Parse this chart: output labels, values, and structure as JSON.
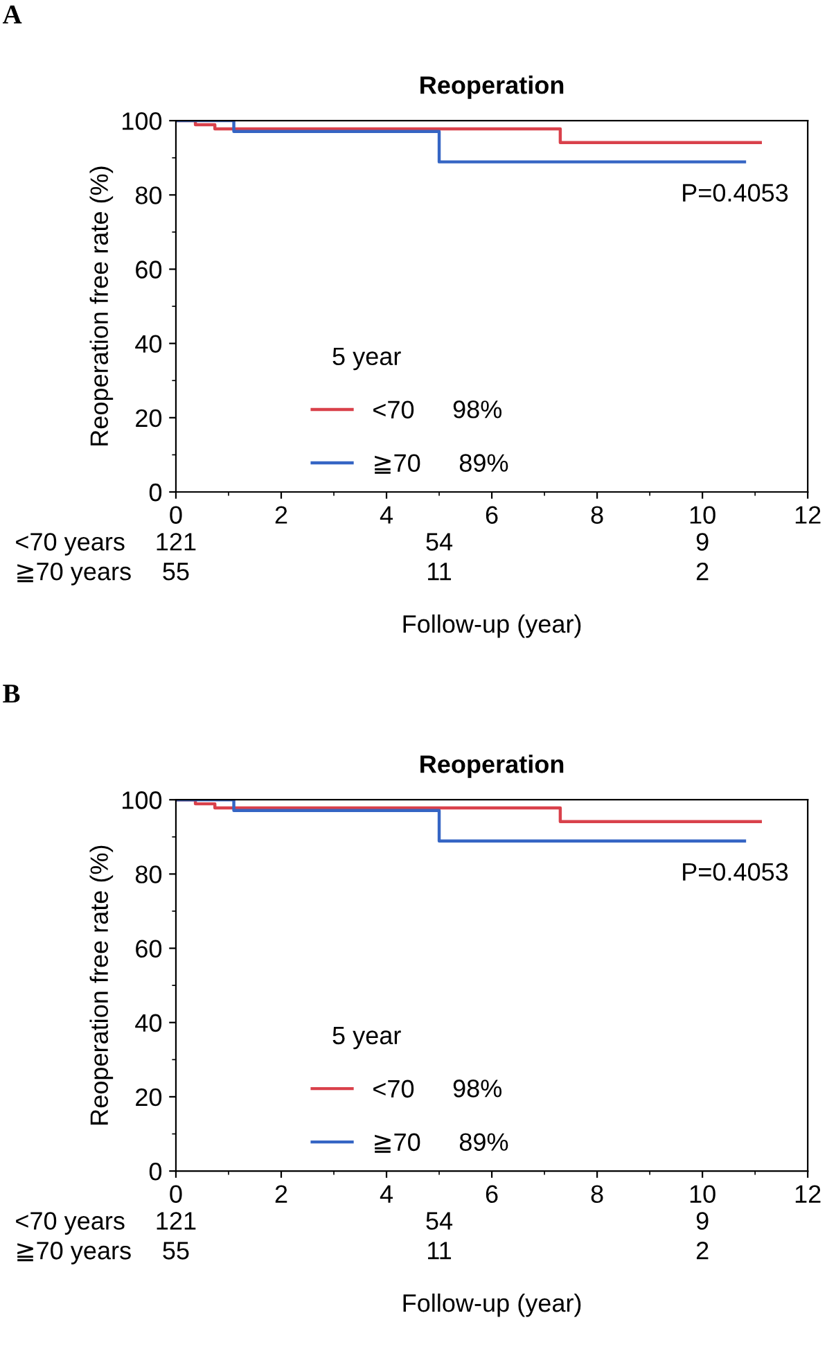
{
  "chart_data": [
    {
      "type": "step",
      "title": "Reoperation",
      "xlabel": "Follow-up (year)",
      "ylabel": "Reoperation free rate (%)",
      "legend_title": "5 year",
      "series": [
        {
          "name": "<70",
          "color": "#d9414b",
          "x": [
            0,
            0.37,
            0.74,
            7.3,
            11.1
          ],
          "values": [
            100,
            98.9,
            97.8,
            94.1,
            94.1
          ]
        },
        {
          "name": "≧70",
          "color": "#3565c4",
          "x": [
            0,
            1.1,
            5.0,
            10.8
          ],
          "values": [
            100,
            97.1,
            88.9,
            88.9
          ]
        }
      ],
      "xlim": [
        0,
        12
      ],
      "xticks": [
        0,
        2,
        4,
        6,
        8,
        10,
        12
      ],
      "ylim": [
        0,
        100
      ],
      "yticks": [
        0,
        20,
        40,
        60,
        80,
        100
      ],
      "grid": false,
      "legend": "bottom left",
      "marker": "none",
      "line_style": "solid",
      "annotations": [
        "A",
        "P=0.4053",
        "98%",
        "89%",
        "<70 years",
        "121",
        "54",
        "9",
        "≧70 years",
        "55",
        "11",
        "2"
      ]
    },
    {
      "type": "step",
      "title": "Reoperation",
      "xlabel": "Follow-up (year)",
      "ylabel": "Reoperation free rate (%)",
      "legend_title": "5 year",
      "series": [
        {
          "name": "<70",
          "color": "#d9414b",
          "x": [
            0,
            0.37,
            0.74,
            7.3,
            11.1
          ],
          "values": [
            100,
            98.9,
            97.8,
            94.1,
            94.1
          ]
        },
        {
          "name": "≧70",
          "color": "#3565c4",
          "x": [
            0,
            1.1,
            5.0,
            10.8
          ],
          "values": [
            100,
            97.1,
            88.9,
            88.9
          ]
        }
      ],
      "xlim": [
        0,
        12
      ],
      "xticks": [
        0,
        2,
        4,
        6,
        8,
        10,
        12
      ],
      "ylim": [
        0,
        100
      ],
      "yticks": [
        0,
        20,
        40,
        60,
        80,
        100
      ],
      "grid": false,
      "legend": "bottom left",
      "marker": "none",
      "line_style": "solid",
      "annotations": [
        "B",
        "P=0.4053",
        "98%",
        "89%",
        "<70 years",
        "121",
        "54",
        "9",
        "≧70 years",
        "55",
        "11",
        "2"
      ]
    }
  ]
}
